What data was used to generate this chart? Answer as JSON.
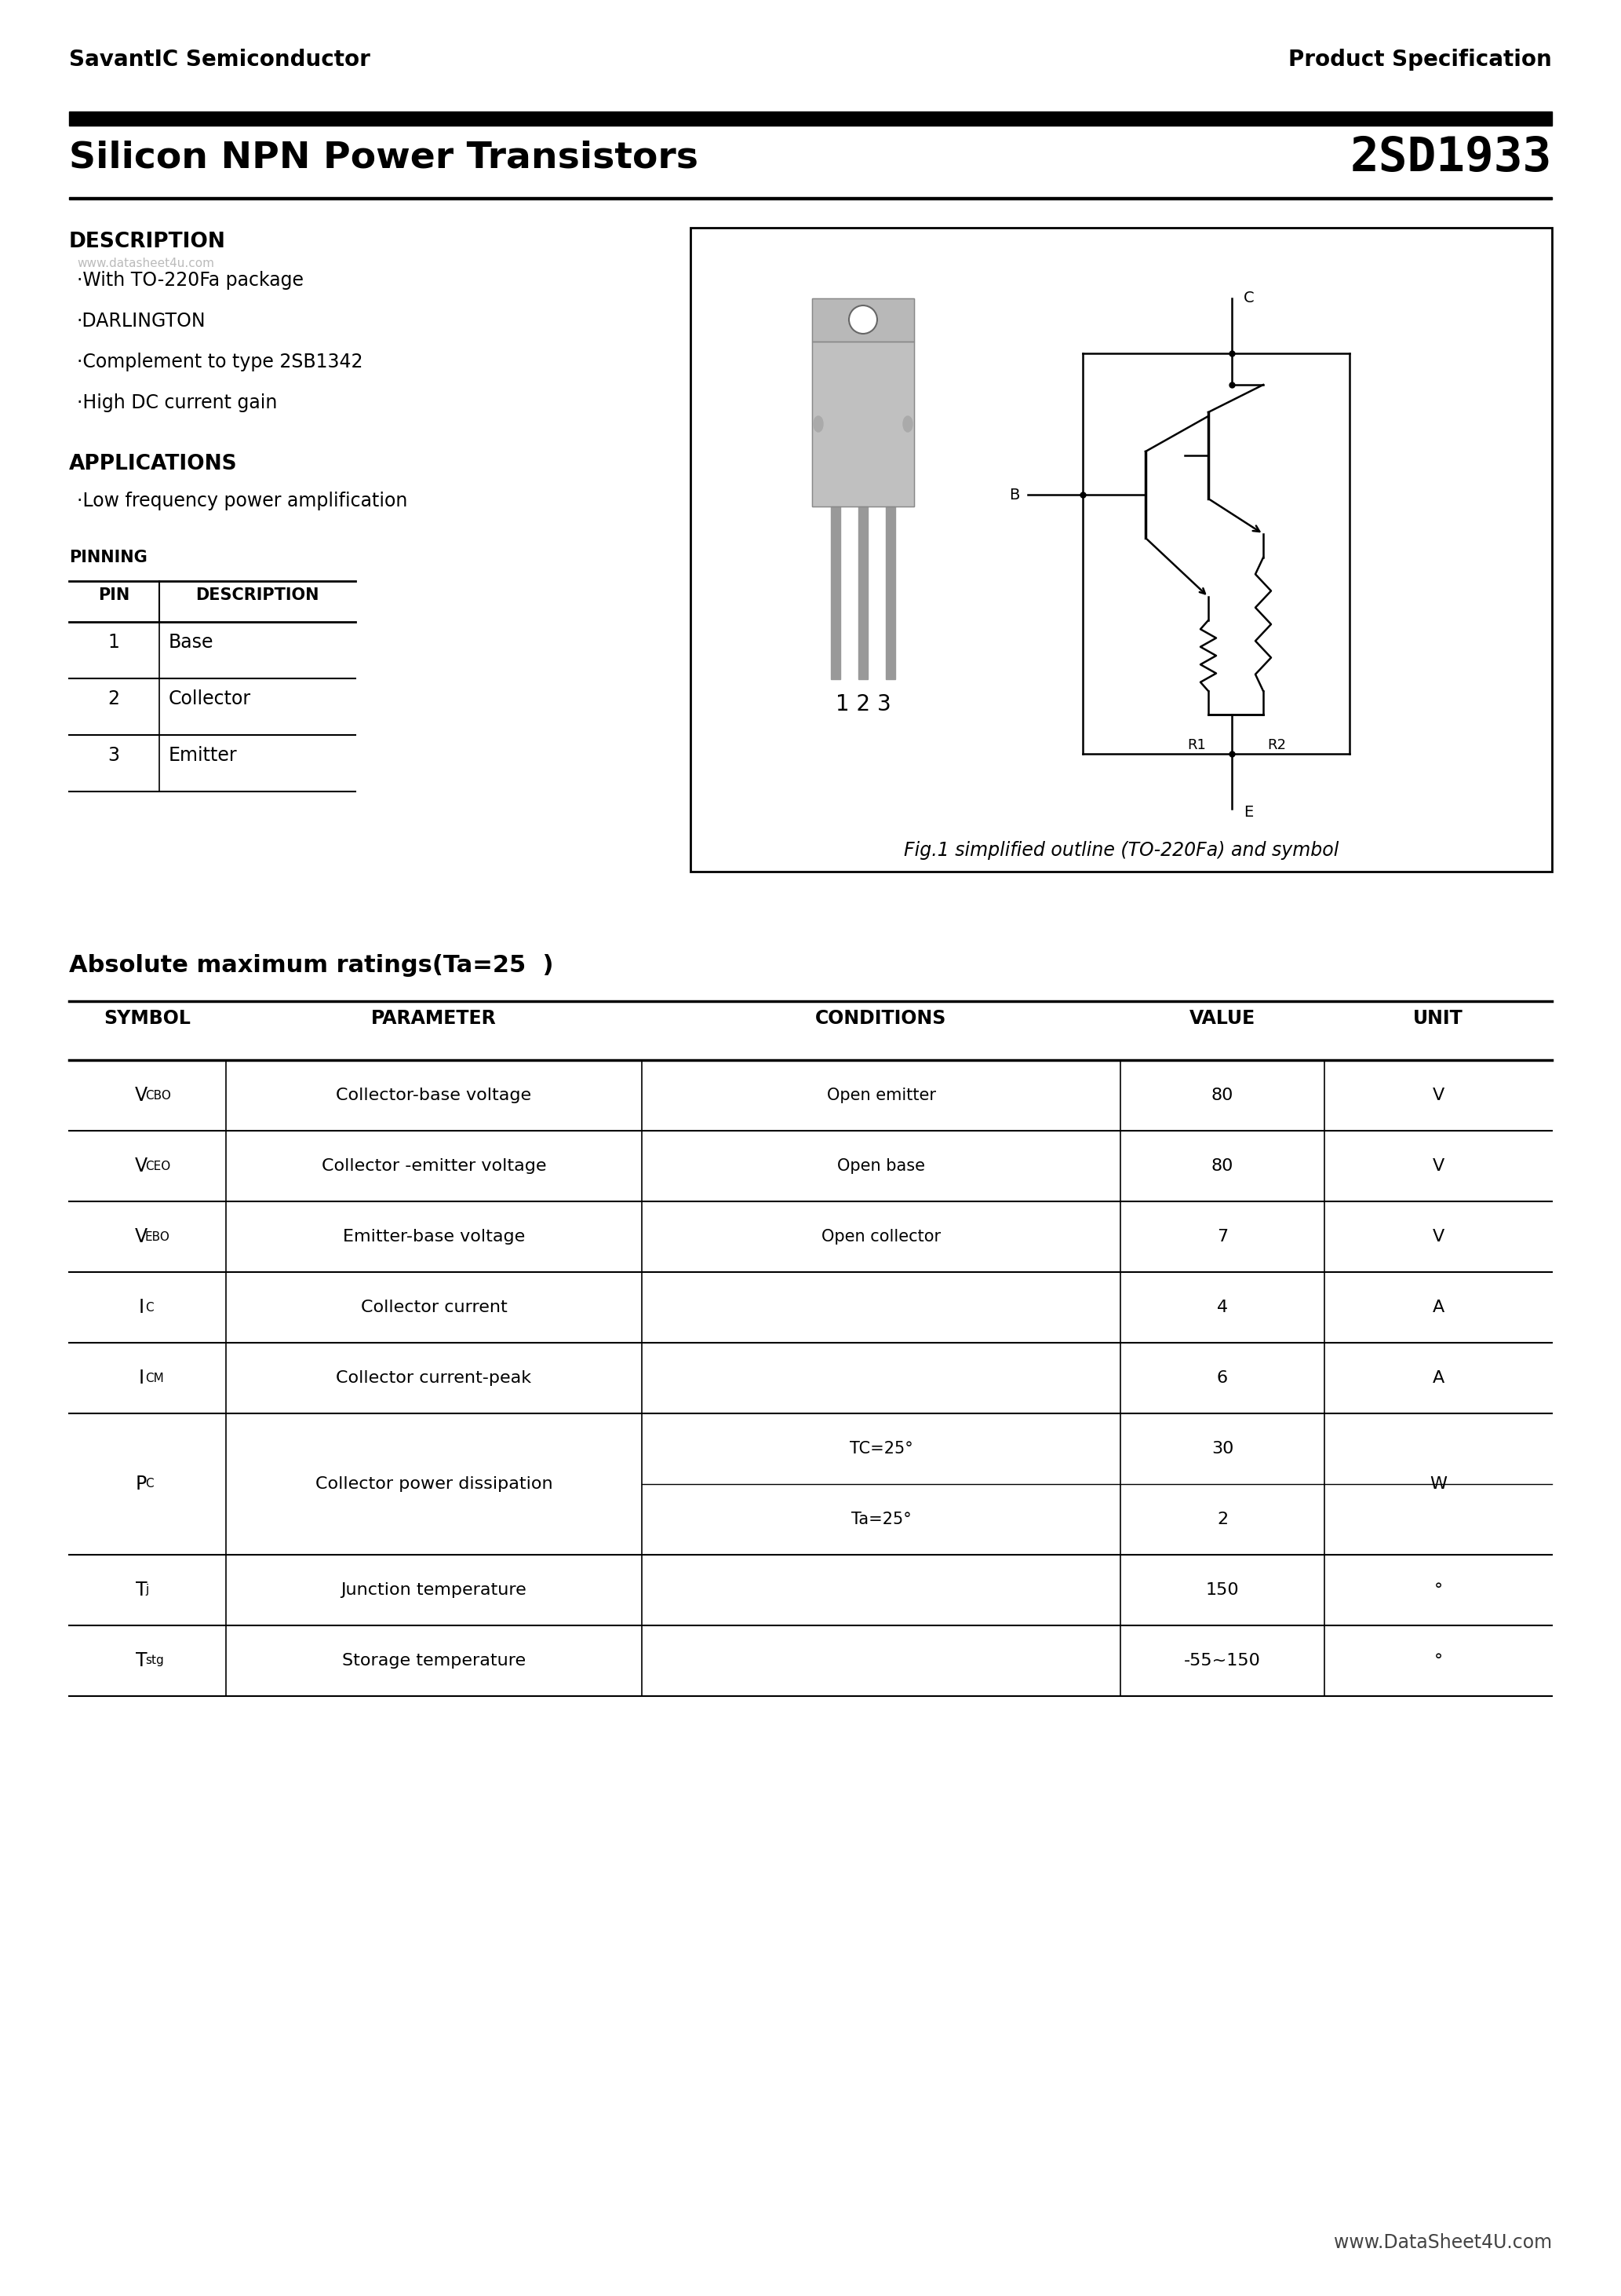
{
  "bg_color": "#ffffff",
  "header_left": "SavantIC Semiconductor",
  "header_right": "Product Specification",
  "title_left": "Silicon NPN Power Transistors",
  "title_right": "2SD1933",
  "watermark": "www.datasheet4u.com",
  "description_title": "DESCRIPTION",
  "description_items": [
    "·With TO-220Fa package",
    "·DARLINGTON",
    "·Complement to type 2SB1342",
    "·High DC current gain"
  ],
  "applications_title": "APPLICATIONS",
  "applications_items": [
    "·Low frequency power amplification"
  ],
  "pinning_title": "PINNING",
  "pin_headers": [
    "PIN",
    "DESCRIPTION"
  ],
  "pin_rows": [
    [
      "1",
      "Base"
    ],
    [
      "2",
      "Collector"
    ],
    [
      "3",
      "Emitter"
    ]
  ],
  "fig_caption": "Fig.1 simplified outline (TO-220Fa) and symbol",
  "abs_max_title": "Absolute maximum ratings(Ta=25  )",
  "table_headers": [
    "SYMBOL",
    "PARAMETER",
    "CONDITIONS",
    "VALUE",
    "UNIT"
  ],
  "footer": "www.DataSheet4U.com"
}
